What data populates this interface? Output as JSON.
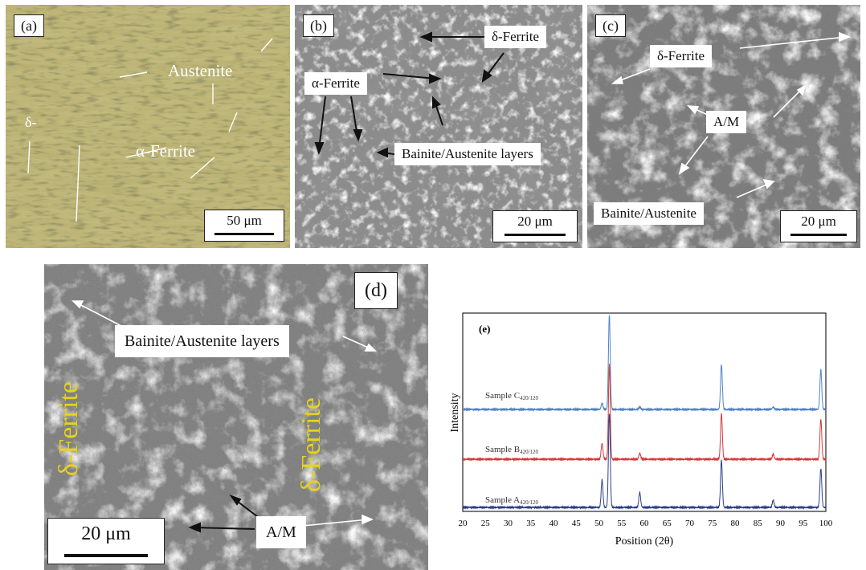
{
  "panel_a": {
    "label": "(a)",
    "austenite": "Austenite",
    "delta": "δ-",
    "alpha_ferrite": "α-Ferrite",
    "scale": "50 μm"
  },
  "panel_b": {
    "label": "(b)",
    "delta_ferrite": "δ-Ferrite",
    "alpha_ferrite": "α-Ferrite",
    "bainite_layers": "Bainite/Austenite layers",
    "scale": "20 μm"
  },
  "panel_c": {
    "label": "(c)",
    "delta_ferrite": "δ-Ferrite",
    "am": "A/M",
    "bainite_austenite": "Bainite/Austenite",
    "scale": "20 μm"
  },
  "panel_d": {
    "label": "(d)",
    "bainite_layers": "Bainite/Austenite layers",
    "delta_ferrite_left": "δ-Ferrite",
    "delta_ferrite_right": "δ-Ferrite",
    "am": "A/M",
    "scale": "20 μm"
  },
  "panel_e": {
    "label": "(e)",
    "ylabel": "Intensity",
    "xlabel": "Position (2θ)",
    "series_labels": [
      {
        "main": "Sample C",
        "sub": "420/120"
      },
      {
        "main": "Sample B",
        "sub": "420/120"
      },
      {
        "main": "Sample A",
        "sub": "420/120"
      }
    ]
  },
  "colors": {
    "micro_a_bg": "#b7ae6c",
    "micro_gray": "#8a8a8a",
    "label_yellow": "#e8d21c",
    "series_c": "#4f83c9",
    "series_b": "#d43a3a",
    "series_a": "#2a3f88"
  },
  "chart_data": {
    "type": "line",
    "xlabel": "Position (2θ)",
    "ylabel": "Intensity",
    "xlim": [
      20,
      100
    ],
    "x_ticks": [
      20,
      25,
      30,
      35,
      40,
      45,
      50,
      55,
      60,
      65,
      70,
      75,
      80,
      85,
      90,
      95,
      100
    ],
    "series": [
      {
        "name": "Sample C420/120",
        "color": "#4f83c9",
        "peaks": [
          {
            "x": 50.7,
            "h": 0.12
          },
          {
            "x": 52.3,
            "h": 1.9
          },
          {
            "x": 59.0,
            "h": 0.05
          },
          {
            "x": 77.0,
            "h": 0.9
          },
          {
            "x": 88.4,
            "h": 0.05
          },
          {
            "x": 98.9,
            "h": 0.8
          }
        ]
      },
      {
        "name": "Sample B420/120",
        "color": "#d43a3a",
        "peaks": [
          {
            "x": 50.7,
            "h": 0.32
          },
          {
            "x": 52.3,
            "h": 1.9
          },
          {
            "x": 59.0,
            "h": 0.12
          },
          {
            "x": 77.0,
            "h": 0.92
          },
          {
            "x": 88.4,
            "h": 0.1
          },
          {
            "x": 98.9,
            "h": 0.8
          }
        ]
      },
      {
        "name": "Sample A420/120",
        "color": "#2a3f88",
        "peaks": [
          {
            "x": 50.7,
            "h": 0.55
          },
          {
            "x": 52.3,
            "h": 1.9
          },
          {
            "x": 59.0,
            "h": 0.3
          },
          {
            "x": 77.0,
            "h": 0.95
          },
          {
            "x": 88.4,
            "h": 0.14
          },
          {
            "x": 98.9,
            "h": 0.78
          }
        ]
      }
    ]
  }
}
